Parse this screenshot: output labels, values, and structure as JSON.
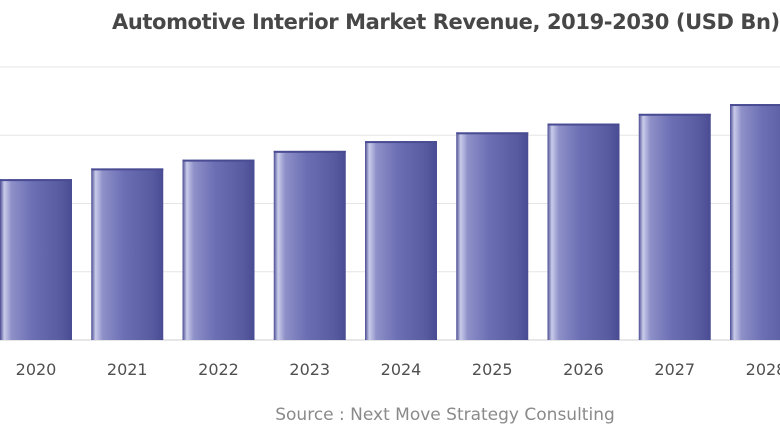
{
  "chart_data": {
    "type": "bar",
    "title": "Automotive Interior Market Revenue, 2019-2030 (USD Bn)",
    "source": "Source : Next Move Strategy Consulting",
    "categories": [
      "2020",
      "2021",
      "2022",
      "2023",
      "2024",
      "2025",
      "2026",
      "2027",
      "2028"
    ],
    "values": [
      165,
      176,
      185,
      194,
      204,
      213,
      222,
      232,
      242
    ],
    "xlabel": "",
    "ylabel": "",
    "ylim": [
      0,
      280
    ],
    "grid": true,
    "colors": {
      "bar_dark": "#4a4c93",
      "bar_mid": "#6c6fb4",
      "bar_light": "#c9cbea",
      "grid": "#e6e6e6",
      "axis": "#cfcfcf"
    }
  }
}
